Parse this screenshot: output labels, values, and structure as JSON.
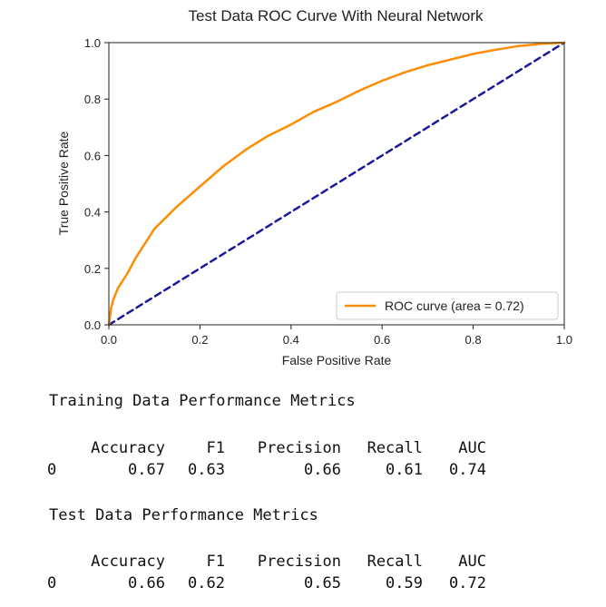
{
  "chart_data": {
    "type": "line",
    "title": "Test Data ROC Curve With Neural Network",
    "xlabel": "False Positive Rate",
    "ylabel": "True Positive Rate",
    "xlim": [
      0.0,
      1.0
    ],
    "ylim": [
      0.0,
      1.0
    ],
    "xticks": [
      "0.0",
      "0.2",
      "0.4",
      "0.6",
      "0.8",
      "1.0"
    ],
    "yticks": [
      "0.0",
      "0.2",
      "0.4",
      "0.6",
      "0.8",
      "1.0"
    ],
    "grid": false,
    "legend_position": "lower-right",
    "series": [
      {
        "name": "ROC curve (area = 0.72)",
        "color": "#ff8c00",
        "style": "solid",
        "x": [
          0.0,
          0.005,
          0.01,
          0.02,
          0.04,
          0.06,
          0.08,
          0.1,
          0.15,
          0.2,
          0.25,
          0.3,
          0.35,
          0.4,
          0.45,
          0.5,
          0.55,
          0.6,
          0.65,
          0.7,
          0.75,
          0.8,
          0.85,
          0.9,
          0.95,
          1.0
        ],
        "y": [
          0.0,
          0.06,
          0.09,
          0.13,
          0.18,
          0.24,
          0.29,
          0.34,
          0.42,
          0.49,
          0.56,
          0.62,
          0.67,
          0.71,
          0.755,
          0.79,
          0.83,
          0.865,
          0.895,
          0.92,
          0.94,
          0.96,
          0.975,
          0.988,
          0.996,
          1.0
        ]
      },
      {
        "name": "",
        "color": "#1a1a9a",
        "style": "dashed",
        "x": [
          0.0,
          1.0
        ],
        "y": [
          0.0,
          1.0
        ]
      }
    ]
  },
  "train_metrics": {
    "heading": "Training Data Performance Metrics",
    "columns": [
      "Accuracy",
      "F1",
      "Precision",
      "Recall",
      "AUC"
    ],
    "index": "0",
    "values": [
      "0.67",
      "0.63",
      "0.66",
      "0.61",
      "0.74"
    ]
  },
  "test_metrics": {
    "heading": "Test Data Performance Metrics",
    "columns": [
      "Accuracy",
      "F1",
      "Precision",
      "Recall",
      "AUC"
    ],
    "index": "0",
    "values": [
      "0.66",
      "0.62",
      "0.65",
      "0.59",
      "0.72"
    ]
  }
}
